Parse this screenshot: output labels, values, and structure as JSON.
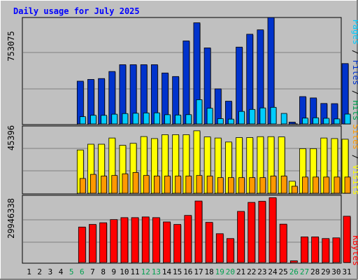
{
  "chart_data": [
    {
      "type": "bar",
      "title": "Daily usage for July 2025",
      "panel": "hits-files-pages",
      "y_tick_label": "753075",
      "right_axis_labels": [
        "Pages",
        "Files",
        "Hits"
      ],
      "categories": [
        "1",
        "2",
        "3",
        "4",
        "5",
        "6",
        "7",
        "8",
        "9",
        "10",
        "11",
        "12",
        "13",
        "14",
        "15",
        "16",
        "17",
        "18",
        "19",
        "20",
        "21",
        "22",
        "23",
        "24",
        "25",
        "26",
        "27",
        "28",
        "29",
        "30",
        "31"
      ],
      "series": [
        {
          "name": "Hits",
          "values": [
            0,
            0,
            0,
            0,
            0,
            485000,
            505000,
            515000,
            595000,
            672000,
            672000,
            672000,
            672000,
            578000,
            538000,
            942000,
            1148000,
            863000,
            398000,
            258000,
            872000,
            1018000,
            1068000,
            1208000,
            0,
            20000,
            310000,
            295000,
            232000,
            230000,
            685000
          ]
        },
        {
          "name": "Files",
          "values": [
            0,
            0,
            0,
            0,
            0,
            0,
            0,
            0,
            0,
            0,
            0,
            0,
            0,
            0,
            0,
            0,
            0,
            0,
            0,
            0,
            0,
            0,
            0,
            0,
            0,
            0,
            0,
            0,
            0,
            0,
            0
          ]
        },
        {
          "name": "Pages",
          "values": [
            0,
            0,
            0,
            0,
            0,
            235000,
            280000,
            278000,
            315000,
            335000,
            345000,
            355000,
            358000,
            298000,
            288000,
            300000,
            785000,
            508000,
            170000,
            155000,
            405000,
            470000,
            518000,
            538000,
            340000,
            3000,
            188000,
            198000,
            182000,
            162000,
            318000
          ]
        }
      ]
    },
    {
      "type": "bar",
      "panel": "visits-sites",
      "y_tick_label": "45396",
      "right_axis_labels": [
        "Sites",
        "Visits"
      ],
      "categories": [
        "1",
        "2",
        "3",
        "4",
        "5",
        "6",
        "7",
        "8",
        "9",
        "10",
        "11",
        "12",
        "13",
        "14",
        "15",
        "16",
        "17",
        "18",
        "19",
        "20",
        "21",
        "22",
        "23",
        "24",
        "25",
        "26",
        "27",
        "28",
        "29",
        "30",
        "31"
      ],
      "series": [
        {
          "name": "Visits",
          "values": [
            0,
            0,
            0,
            0,
            0,
            39000,
            44200,
            44200,
            49800,
            43200,
            45000,
            51100,
            49300,
            52800,
            52800,
            52800,
            56300,
            50800,
            49800,
            46200,
            50200,
            50200,
            51000,
            51000,
            50800,
            10800,
            40200,
            40200,
            49800,
            49300,
            48700
          ]
        },
        {
          "name": "Sites",
          "values": [
            0,
            0,
            0,
            0,
            0,
            13300,
            17000,
            15500,
            16000,
            17500,
            18700,
            16000,
            15500,
            15500,
            15500,
            15500,
            16000,
            15500,
            14100,
            14100,
            14100,
            14100,
            14100,
            15500,
            15500,
            6300,
            14600,
            14600,
            14600,
            14600,
            14600
          ]
        }
      ]
    },
    {
      "type": "bar",
      "panel": "kbytes",
      "y_tick_label": "29946338",
      "right_axis_labels": [
        "KBytes"
      ],
      "categories": [
        "1",
        "2",
        "3",
        "4",
        "5",
        "6",
        "7",
        "8",
        "9",
        "10",
        "11",
        "12",
        "13",
        "14",
        "15",
        "16",
        "17",
        "18",
        "19",
        "20",
        "21",
        "22",
        "23",
        "24",
        "25",
        "26",
        "27",
        "28",
        "29",
        "30",
        "31"
      ],
      "series": [
        {
          "name": "KBytes",
          "values": [
            0,
            0,
            0,
            0,
            0,
            25600000,
            27500000,
            28700000,
            31000000,
            32400000,
            32400000,
            32900000,
            32400000,
            29300000,
            27500000,
            34000000,
            44400000,
            29000000,
            20800000,
            17300000,
            36900000,
            43400000,
            44200000,
            46800000,
            27700000,
            1200000,
            18500000,
            18500000,
            17300000,
            17800000,
            33400000
          ]
        }
      ]
    }
  ],
  "x_axis": {
    "days": [
      "1",
      "2",
      "3",
      "4",
      "5",
      "6",
      "7",
      "8",
      "9",
      "10",
      "11",
      "12",
      "13",
      "14",
      "15",
      "16",
      "17",
      "18",
      "19",
      "20",
      "21",
      "22",
      "23",
      "24",
      "25",
      "26",
      "27",
      "28",
      "29",
      "30",
      "31"
    ],
    "weekend_days": [
      5,
      6,
      12,
      13,
      19,
      20,
      26,
      27
    ]
  },
  "colors": {
    "background": "#c0c0c0",
    "title": "#0000ff",
    "plot_bg": "#c0c0c0",
    "hits": "#0033cc",
    "hits_highlight": "#3366ff",
    "pages": "#00ccff",
    "visits": "#ffff00",
    "sites": "#ff9900",
    "kbytes": "#ff0000",
    "weekend_text": "#00a050",
    "weekday_text": "#000000",
    "pages_label": "#00ccff",
    "files_label": "#0033cc",
    "hits_label": "#00a050",
    "sites_label": "#ff9900",
    "visits_label": "#ffff00",
    "kbytes_label": "#ff0000"
  }
}
